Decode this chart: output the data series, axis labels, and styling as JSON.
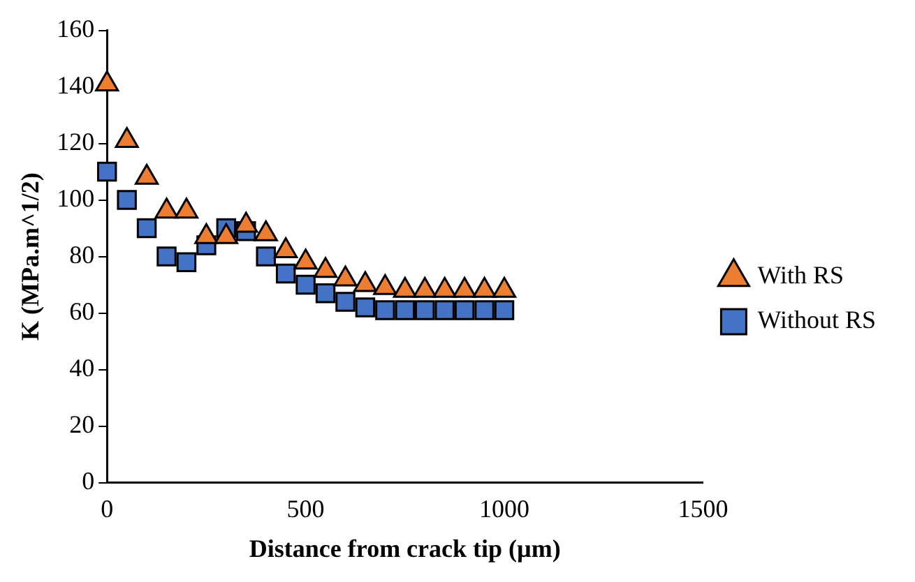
{
  "chart_data": {
    "type": "scatter",
    "xlabel": "Distance from crack tip (µm)",
    "ylabel": "K (MPa.m^1/2)",
    "x": [
      0,
      50,
      100,
      150,
      200,
      250,
      300,
      350,
      400,
      450,
      500,
      550,
      600,
      650,
      700,
      750,
      800,
      850,
      900,
      950,
      1000
    ],
    "series": [
      {
        "name": "Without RS",
        "color": "#4472c4",
        "marker": "square",
        "values": [
          110,
          100,
          90,
          80,
          78,
          84,
          90,
          89,
          80,
          74,
          70,
          67,
          64,
          62,
          61,
          61,
          61,
          61,
          61,
          61,
          61
        ]
      },
      {
        "name": "With RS",
        "color": "#ed7d31",
        "marker": "triangle",
        "values": [
          141,
          121,
          108,
          96,
          96,
          87,
          87,
          91,
          88,
          82,
          78,
          75,
          72,
          70,
          69,
          68,
          68,
          68,
          68,
          68,
          68
        ]
      }
    ],
    "xlim": [
      0,
      1500
    ],
    "xticks": [
      0,
      500,
      1000,
      1500
    ],
    "ylim": [
      0,
      160
    ],
    "yticks": [
      0,
      20,
      40,
      60,
      80,
      100,
      120,
      140,
      160
    ],
    "grid": false,
    "legend": "right"
  }
}
